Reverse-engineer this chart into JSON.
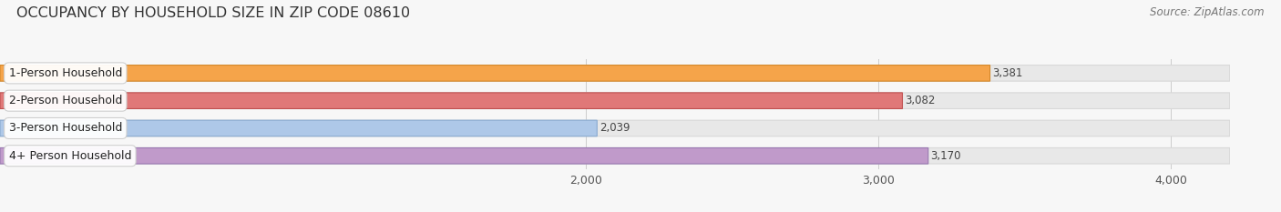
{
  "title": "OCCUPANCY BY HOUSEHOLD SIZE IN ZIP CODE 08610",
  "source": "Source: ZipAtlas.com",
  "categories": [
    "1-Person Household",
    "2-Person Household",
    "3-Person Household",
    "4+ Person Household"
  ],
  "values": [
    3381,
    3082,
    2039,
    3170
  ],
  "bar_colors": [
    "#f5a44a",
    "#e07878",
    "#aec8e8",
    "#c09aca"
  ],
  "bar_edge_colors": [
    "#d4882a",
    "#c05050",
    "#88aad0",
    "#9878b0"
  ],
  "xlim": [
    0,
    4200
  ],
  "xticks": [
    2000,
    3000,
    4000
  ],
  "background_color": "#f7f7f7",
  "track_color": "#e8e8e8",
  "track_edge_color": "#d8d8d8",
  "title_fontsize": 11.5,
  "source_fontsize": 8.5,
  "tick_fontsize": 9,
  "bar_label_fontsize": 8.5,
  "category_label_fontsize": 9,
  "bar_height": 0.58,
  "value_label_padding": 8
}
